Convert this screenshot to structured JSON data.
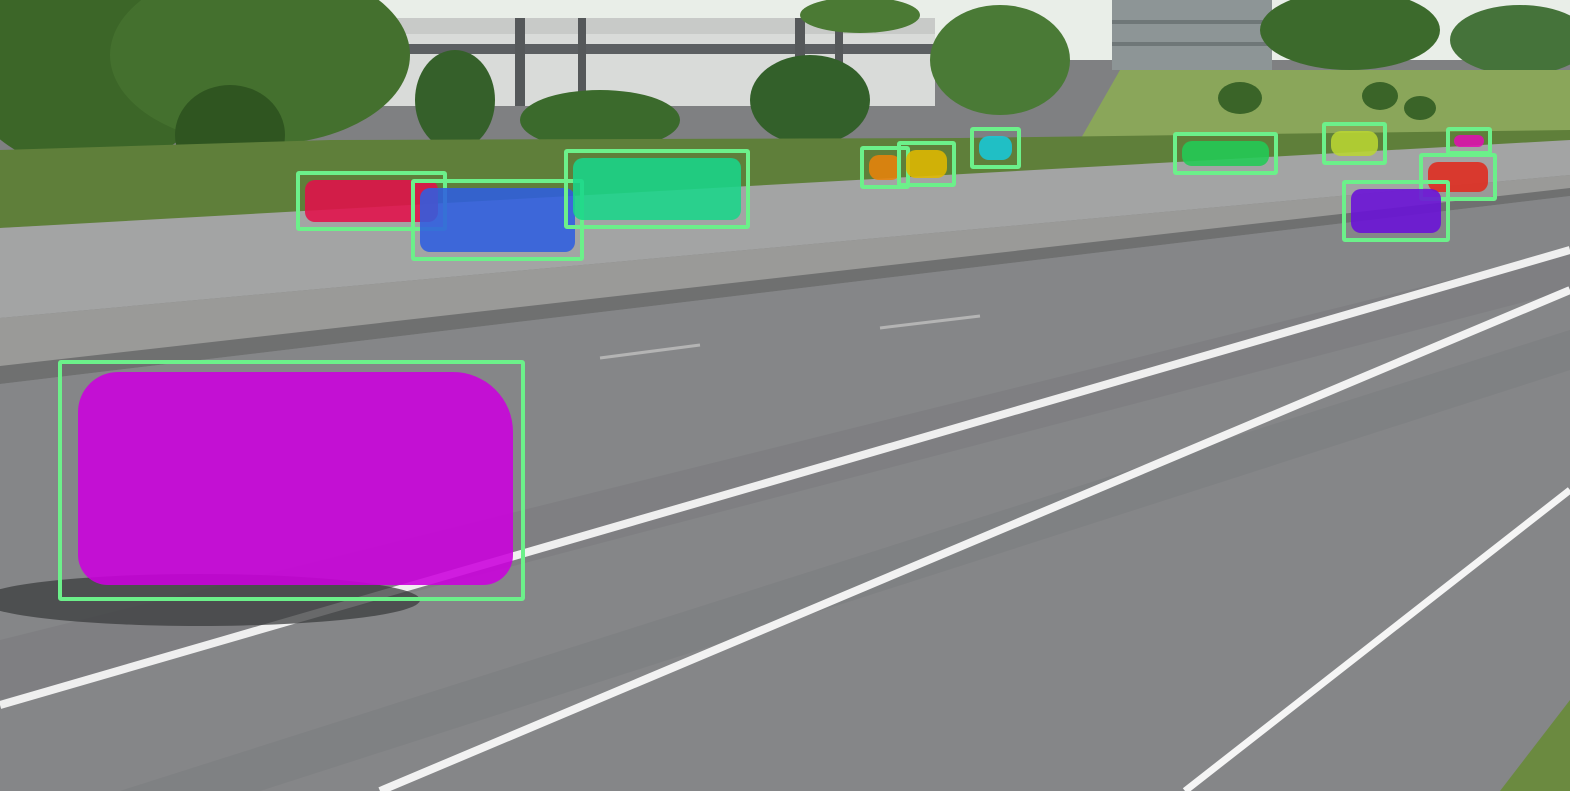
{
  "scene": {
    "description_colors": {
      "sky": "#e9eee8",
      "foliage": "#3f6a2c",
      "road": "#858688",
      "lane_marking": "#f2f2f2",
      "barrier": "#9a9a98"
    }
  },
  "detection_style": {
    "box_color": "#6cf08a"
  },
  "detections": [
    {
      "id": "det-1",
      "mask_color": "#cc00dd"
    },
    {
      "id": "det-2",
      "mask_color": "#e2104a"
    },
    {
      "id": "det-3",
      "mask_color": "#2f5fe0"
    },
    {
      "id": "det-4",
      "mask_color": "#19d68a"
    },
    {
      "id": "det-5",
      "mask_color": "#e8830a"
    },
    {
      "id": "det-6",
      "mask_color": "#e0b800"
    },
    {
      "id": "det-7",
      "mask_color": "#18c8d8"
    },
    {
      "id": "det-8",
      "mask_color": "#22cc55"
    },
    {
      "id": "det-9",
      "mask_color": "#b9d632"
    },
    {
      "id": "det-10",
      "mask_color": "#e010b0"
    },
    {
      "id": "det-11",
      "mask_color": "#e02a1e"
    },
    {
      "id": "det-12",
      "mask_color": "#6a10d8"
    }
  ]
}
